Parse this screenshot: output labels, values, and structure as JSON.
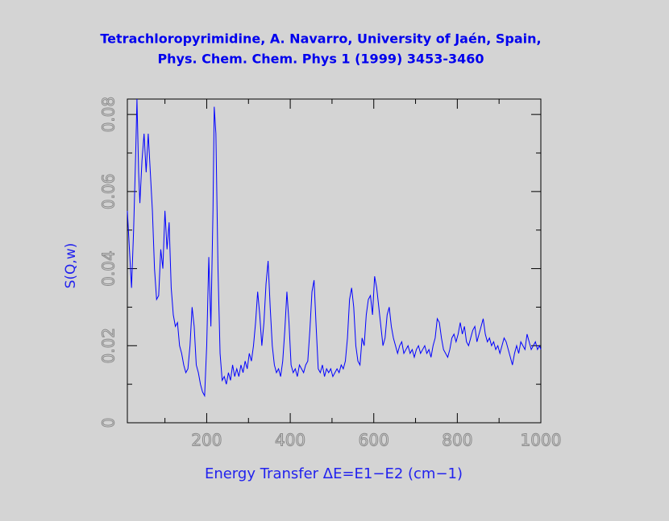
{
  "chart_data": {
    "type": "line",
    "title": [
      "Tetrachloropyrimidine, A. Navarro, University of Jaén, Spain,",
      "Phys. Chem. Chem. Phys 1 (1999) 3453-3460"
    ],
    "xlabel": "Energy Transfer ΔE=E1−E2 (cm−1)",
    "ylabel": "S(Q,w)",
    "color": "#0000ff",
    "xlim": [
      10,
      1000
    ],
    "ylim": [
      0,
      0.084
    ],
    "xticks": [
      200,
      400,
      600,
      800,
      1000
    ],
    "xminor_ticks": [
      100,
      300,
      500,
      700,
      900
    ],
    "yticks": [
      0,
      0.02,
      0.04,
      0.06,
      0.08
    ],
    "yminor_ticks": [
      0.01,
      0.03,
      0.05,
      0.07
    ],
    "x": [
      10,
      15,
      20,
      25,
      30,
      33,
      37,
      40,
      45,
      50,
      55,
      60,
      65,
      70,
      75,
      80,
      85,
      90,
      95,
      100,
      105,
      110,
      115,
      120,
      125,
      130,
      135,
      140,
      145,
      150,
      155,
      160,
      165,
      170,
      175,
      180,
      185,
      190,
      195,
      200,
      205,
      210,
      215,
      218,
      222,
      227,
      232,
      237,
      242,
      247,
      252,
      257,
      262,
      267,
      272,
      277,
      282,
      287,
      292,
      297,
      302,
      307,
      312,
      317,
      322,
      327,
      332,
      337,
      342,
      347,
      352,
      357,
      362,
      367,
      372,
      377,
      382,
      387,
      392,
      397,
      402,
      407,
      412,
      417,
      422,
      427,
      432,
      437,
      442,
      447,
      452,
      457,
      462,
      467,
      472,
      477,
      482,
      487,
      492,
      497,
      502,
      507,
      512,
      517,
      522,
      527,
      532,
      537,
      542,
      547,
      552,
      557,
      562,
      567,
      572,
      577,
      582,
      587,
      592,
      597,
      602,
      607,
      612,
      617,
      622,
      627,
      632,
      637,
      642,
      647,
      652,
      657,
      662,
      667,
      672,
      677,
      682,
      687,
      692,
      697,
      702,
      707,
      712,
      717,
      722,
      727,
      732,
      737,
      742,
      747,
      752,
      757,
      762,
      767,
      772,
      777,
      782,
      787,
      792,
      797,
      802,
      807,
      812,
      817,
      822,
      827,
      832,
      837,
      842,
      847,
      852,
      857,
      862,
      867,
      872,
      877,
      882,
      887,
      892,
      897,
      902,
      907,
      912,
      917,
      922,
      927,
      932,
      937,
      942,
      947,
      952,
      957,
      962,
      967,
      972,
      977,
      982,
      987,
      992,
      997,
      1000
    ],
    "values": [
      0.055,
      0.045,
      0.035,
      0.05,
      0.07,
      0.084,
      0.065,
      0.057,
      0.068,
      0.075,
      0.065,
      0.075,
      0.065,
      0.055,
      0.04,
      0.032,
      0.033,
      0.045,
      0.04,
      0.055,
      0.045,
      0.052,
      0.035,
      0.028,
      0.025,
      0.026,
      0.02,
      0.018,
      0.015,
      0.013,
      0.014,
      0.02,
      0.03,
      0.025,
      0.015,
      0.013,
      0.01,
      0.008,
      0.007,
      0.02,
      0.043,
      0.025,
      0.055,
      0.082,
      0.075,
      0.04,
      0.018,
      0.011,
      0.012,
      0.01,
      0.013,
      0.011,
      0.015,
      0.012,
      0.014,
      0.012,
      0.015,
      0.013,
      0.016,
      0.014,
      0.018,
      0.016,
      0.02,
      0.026,
      0.034,
      0.028,
      0.02,
      0.026,
      0.036,
      0.042,
      0.03,
      0.02,
      0.015,
      0.013,
      0.014,
      0.012,
      0.016,
      0.024,
      0.034,
      0.026,
      0.015,
      0.013,
      0.014,
      0.012,
      0.015,
      0.014,
      0.013,
      0.015,
      0.016,
      0.024,
      0.034,
      0.037,
      0.025,
      0.014,
      0.013,
      0.015,
      0.012,
      0.014,
      0.013,
      0.014,
      0.012,
      0.013,
      0.014,
      0.013,
      0.015,
      0.014,
      0.016,
      0.022,
      0.032,
      0.035,
      0.03,
      0.02,
      0.016,
      0.015,
      0.022,
      0.02,
      0.028,
      0.032,
      0.033,
      0.028,
      0.038,
      0.035,
      0.03,
      0.025,
      0.02,
      0.022,
      0.028,
      0.03,
      0.025,
      0.022,
      0.02,
      0.018,
      0.02,
      0.021,
      0.018,
      0.019,
      0.02,
      0.018,
      0.019,
      0.017,
      0.019,
      0.02,
      0.018,
      0.019,
      0.02,
      0.018,
      0.019,
      0.017,
      0.02,
      0.022,
      0.027,
      0.026,
      0.022,
      0.019,
      0.018,
      0.017,
      0.019,
      0.022,
      0.023,
      0.021,
      0.023,
      0.026,
      0.023,
      0.025,
      0.021,
      0.02,
      0.022,
      0.024,
      0.025,
      0.021,
      0.023,
      0.025,
      0.027,
      0.023,
      0.021,
      0.022,
      0.02,
      0.021,
      0.019,
      0.02,
      0.018,
      0.02,
      0.022,
      0.021,
      0.019,
      0.017,
      0.015,
      0.018,
      0.02,
      0.018,
      0.021,
      0.02,
      0.019,
      0.023,
      0.021,
      0.019,
      0.02,
      0.021,
      0.019,
      0.02,
      0.019
    ]
  }
}
